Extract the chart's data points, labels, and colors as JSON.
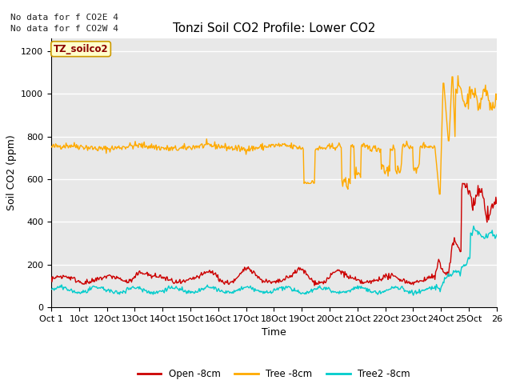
{
  "title": "Tonzi Soil CO2 Profile: Lower CO2",
  "xlabel": "Time",
  "ylabel": "Soil CO2 (ppm)",
  "ylim": [
    0,
    1260
  ],
  "yticks": [
    0,
    200,
    400,
    600,
    800,
    1000,
    1200
  ],
  "xtick_labels": [
    "Oct 1",
    "10ct",
    "12Oct",
    "13Oct",
    "14Oct",
    "15Oct",
    "16Oct",
    "17Oct",
    "18Oct",
    "19Oct",
    "20Oct",
    "21Oct",
    "22Oct",
    "23Oct",
    "24Oct",
    "25Oct",
    "26"
  ],
  "annotations": [
    "No data for f CO2E 4",
    "No data for f CO2W 4"
  ],
  "legend_label": "TZ_soilco2",
  "line_labels": [
    "Open -8cm",
    "Tree -8cm",
    "Tree2 -8cm"
  ],
  "line_colors": [
    "#cc0000",
    "#ffaa00",
    "#00cccc"
  ],
  "bg_color": "#e8e8e8",
  "grid_color": "#ffffff",
  "title_fontsize": 11,
  "axis_fontsize": 9,
  "tick_fontsize": 8,
  "annot_fontsize": 8
}
